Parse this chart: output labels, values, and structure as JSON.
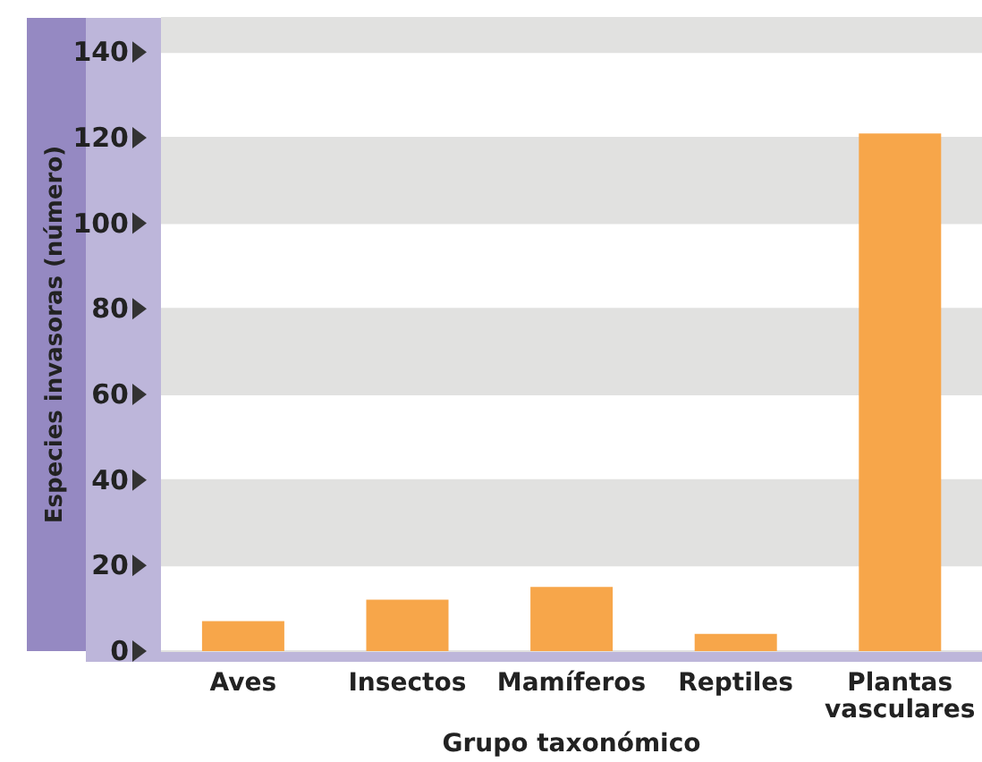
{
  "chart_data": {
    "type": "bar",
    "xlabel": "Grupo taxonómico",
    "ylabel": "Especies invasoras (número)",
    "categories": [
      "Aves",
      "Insectos",
      "Mamíferos",
      "Reptiles",
      "Plantas vasculares"
    ],
    "values": [
      7,
      12,
      15,
      4,
      121
    ],
    "color": "#f7a64a",
    "ylim": [
      0,
      148
    ],
    "yticks": [
      0,
      20,
      40,
      60,
      80,
      100,
      120,
      140
    ],
    "grid": "y"
  }
}
